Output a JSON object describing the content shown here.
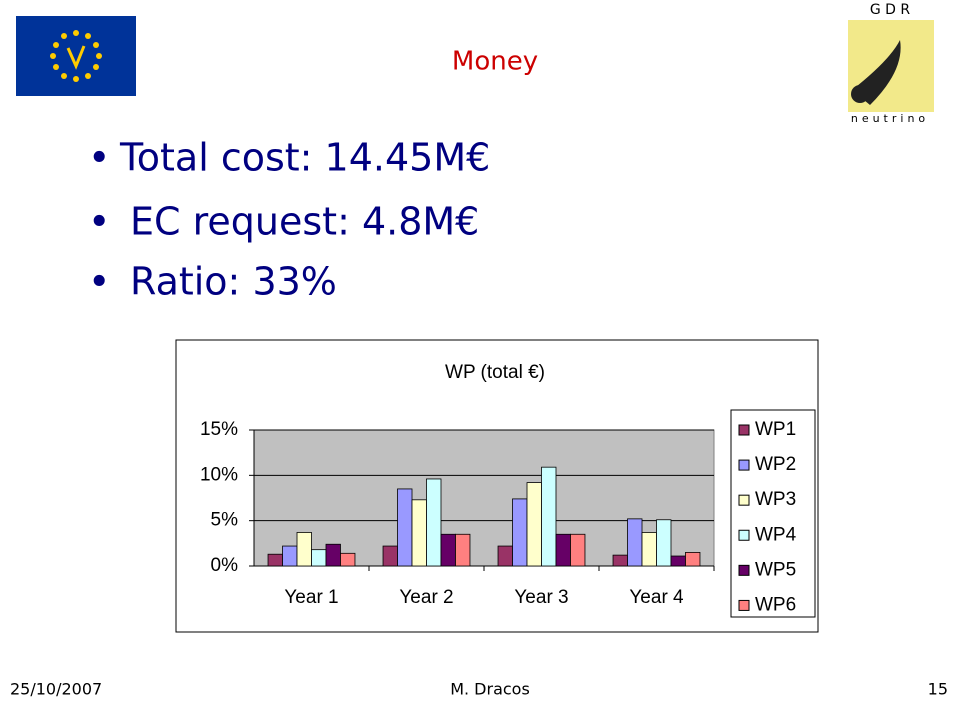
{
  "slide_title": "Money",
  "bullets": [
    "Total cost: 14.45M€",
    "EC request: 4.8M€",
    "Ratio: 33%"
  ],
  "logo_right": {
    "top": "G D R",
    "bottom": "neutrino"
  },
  "footer": {
    "date": "25/10/2007",
    "author": "M. Dracos",
    "page": "15"
  },
  "chart_data": {
    "type": "bar",
    "title": "WP (total €)",
    "categories": [
      "Year 1",
      "Year 2",
      "Year 3",
      "Year 4"
    ],
    "series": [
      {
        "name": "WP1",
        "color": "#993366",
        "values": [
          1.3,
          2.2,
          2.2,
          1.2
        ]
      },
      {
        "name": "WP2",
        "color": "#9999ff",
        "values": [
          2.2,
          8.5,
          7.4,
          5.2
        ]
      },
      {
        "name": "WP3",
        "color": "#ffffcc",
        "values": [
          3.7,
          7.3,
          9.2,
          3.7
        ]
      },
      {
        "name": "WP4",
        "color": "#ccffff",
        "values": [
          1.8,
          9.6,
          10.9,
          5.1
        ]
      },
      {
        "name": "WP5",
        "color": "#660066",
        "values": [
          2.4,
          3.5,
          3.5,
          1.1
        ]
      },
      {
        "name": "WP6",
        "color": "#ff8080",
        "values": [
          1.4,
          3.5,
          3.5,
          1.5
        ]
      }
    ],
    "ylim": [
      0,
      15
    ],
    "yticks": [
      {
        "value": 0,
        "label": "0%"
      },
      {
        "value": 5,
        "label": "5%"
      },
      {
        "value": 10,
        "label": "10%"
      },
      {
        "value": 15,
        "label": "15%"
      }
    ],
    "grid": true,
    "plot_background": "#c0c0c0",
    "legend": "right"
  }
}
